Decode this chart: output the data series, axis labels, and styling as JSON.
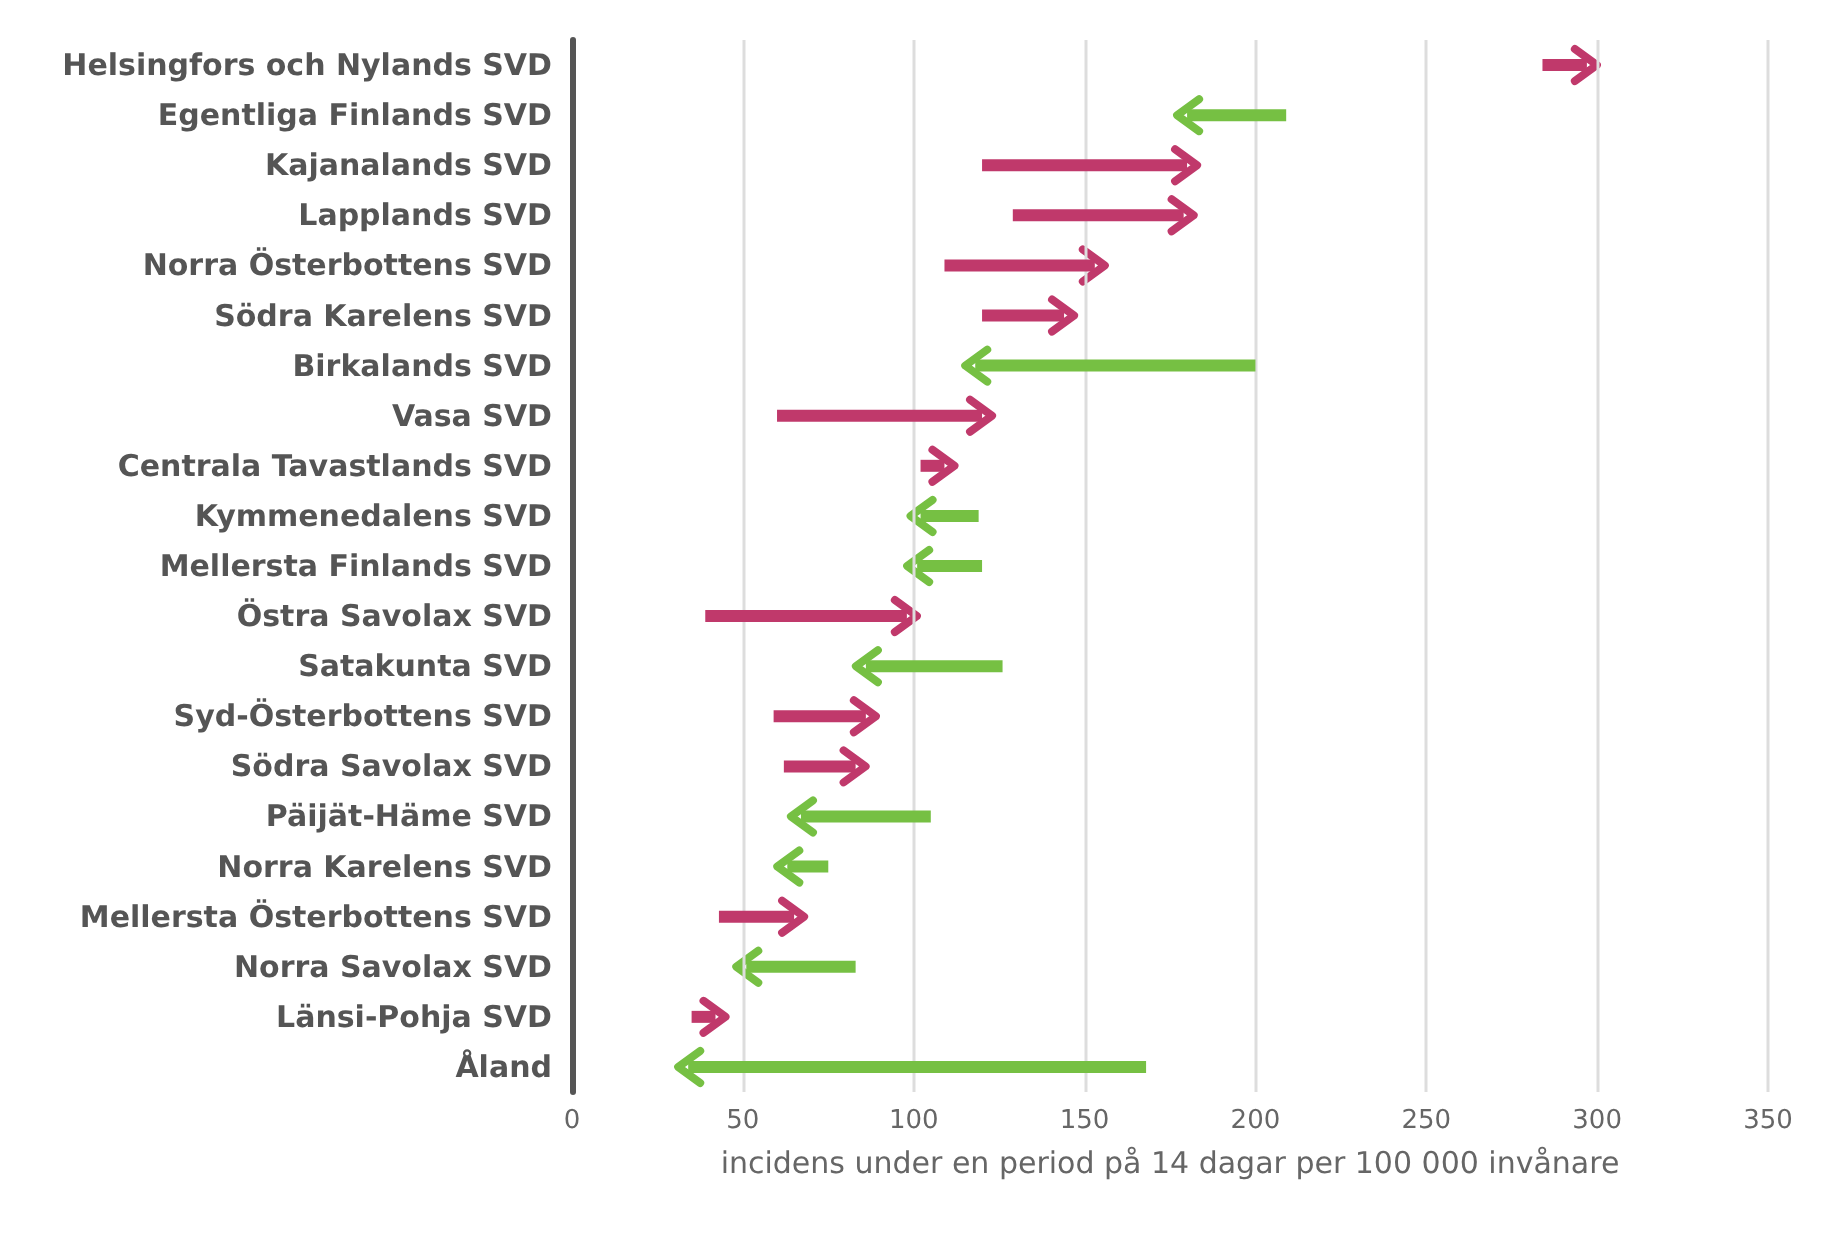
{
  "chart_data": {
    "type": "bar",
    "orientation": "horizontal",
    "xlabel": "incidens under en period på 14 dagar per 100 000 invånare",
    "categories": [
      "Helsingfors och Nylands SVD",
      "Egentliga Finlands SVD",
      "Kajanalands SVD",
      "Lapplands SVD",
      "Norra Österbottens SVD",
      "Södra Karelens SVD",
      "Birkalands SVD",
      "Vasa SVD",
      "Centrala Tavastlands SVD",
      "Kymmenedalens SVD",
      "Mellersta Finlands SVD",
      "Östra Savolax SVD",
      "Satakunta SVD",
      "Syd-Österbottens SVD",
      "Södra Savolax SVD",
      "Päijät-Häme SVD",
      "Norra Karelens SVD",
      "Mellersta Österbottens SVD",
      "Norra Savolax SVD",
      "Länsi-Pohja SVD",
      "Åland"
    ],
    "base": [
      284,
      209,
      120,
      129,
      109,
      120,
      200,
      60,
      102,
      119,
      120,
      39,
      126,
      59,
      62,
      105,
      75,
      43,
      83,
      35,
      168
    ],
    "values": [
      13,
      -29,
      60,
      50,
      44,
      24,
      -82,
      60,
      7,
      -17,
      -19,
      59,
      -40,
      27,
      21,
      -38,
      -12,
      22,
      -32,
      7,
      -134
    ],
    "colors": [
      "#c0396b",
      "#76c043",
      "#c0396b",
      "#c0396b",
      "#c0396b",
      "#c0396b",
      "#76c043",
      "#c0396b",
      "#c0396b",
      "#76c043",
      "#76c043",
      "#c0396b",
      "#76c043",
      "#c0396b",
      "#c0396b",
      "#76c043",
      "#76c043",
      "#c0396b",
      "#76c043",
      "#c0396b",
      "#76c043"
    ],
    "xlim": [
      0,
      350
    ],
    "xticks": [
      0,
      50,
      100,
      150,
      200,
      250,
      300,
      350
    ],
    "grid": "x"
  }
}
